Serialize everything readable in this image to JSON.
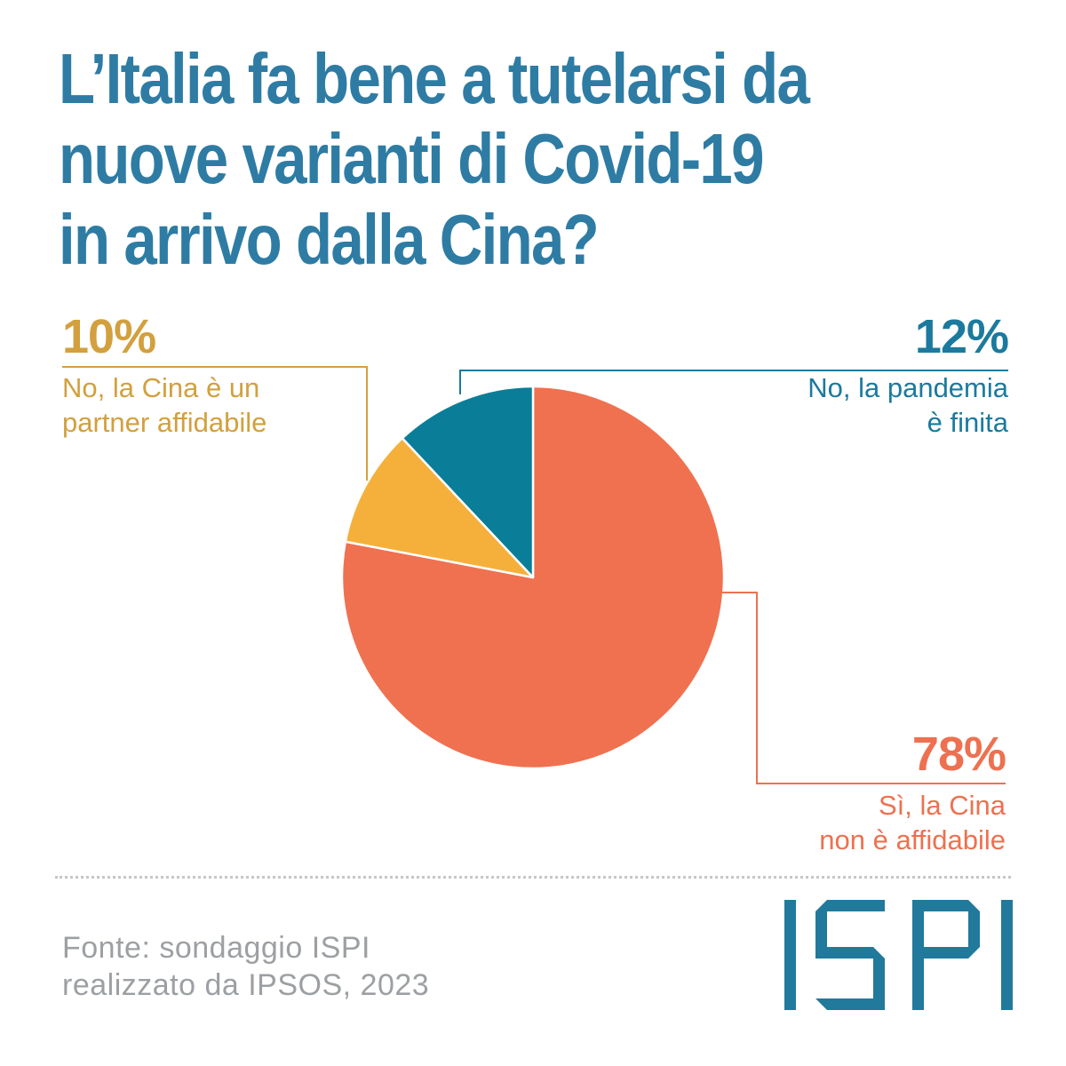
{
  "title": "L’Italia fa bene a tutelarsi da\nnuove varianti di Covid-19\nin arrivo dalla Cina?",
  "chart_data": {
    "type": "pie",
    "title": "L’Italia fa bene a tutelarsi da nuove varianti di Covid-19 in arrivo dalla Cina?",
    "start_angle_deg": 0,
    "direction": "clockwise",
    "legend_position": "callouts",
    "slices": [
      {
        "label": "Sì, la Cina non è affidabile",
        "value": 78,
        "pct_label": "78%",
        "color": "#ef7150"
      },
      {
        "label": "No, la Cina è un partner affidabile",
        "value": 10,
        "pct_label": "10%",
        "color": "#f5b03c"
      },
      {
        "label": "No, la pandemia è finita",
        "value": 12,
        "pct_label": "12%",
        "color": "#0a7e98"
      }
    ]
  },
  "callouts": {
    "partner": {
      "pct": "10%",
      "label": "No, la Cina è un\npartner affidabile",
      "color": "#d2a03e"
    },
    "pandemia": {
      "pct": "12%",
      "label": "No, la pandemia\nè finita",
      "color": "#1b7a9d"
    },
    "affidabile": {
      "pct": "78%",
      "label": "Sì, la Cina\nnon è affidabile",
      "color": "#ed7150"
    }
  },
  "footer": {
    "source": "Fonte: sondaggio ISPI\nrealizzato da IPSOS, 2023",
    "logo_text": "ISPI"
  },
  "colors": {
    "title": "#2e7ca4",
    "logo": "#21799c",
    "footer_text": "#9da0a3",
    "pie_stroke": "#ffffff",
    "background": "#ffffff"
  }
}
